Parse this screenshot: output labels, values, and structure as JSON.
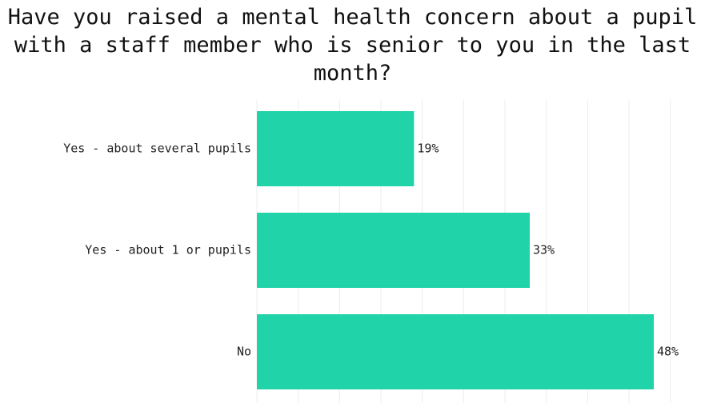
{
  "chart_data": {
    "type": "hbar",
    "title": "Have you raised a mental health concern about a pupil with a staff member who is senior to you in the last month?",
    "categories": [
      "Yes - about several pupils",
      "Yes - about 1 or pupils",
      "No"
    ],
    "values": [
      19,
      33,
      48
    ],
    "value_labels": [
      "19%",
      "33%",
      "48%"
    ],
    "color": "#20d3a8",
    "xlim": [
      0,
      54
    ],
    "xticks": [
      0,
      5,
      10,
      15,
      20,
      25,
      30,
      35,
      40,
      45,
      50
    ],
    "grid": true
  }
}
